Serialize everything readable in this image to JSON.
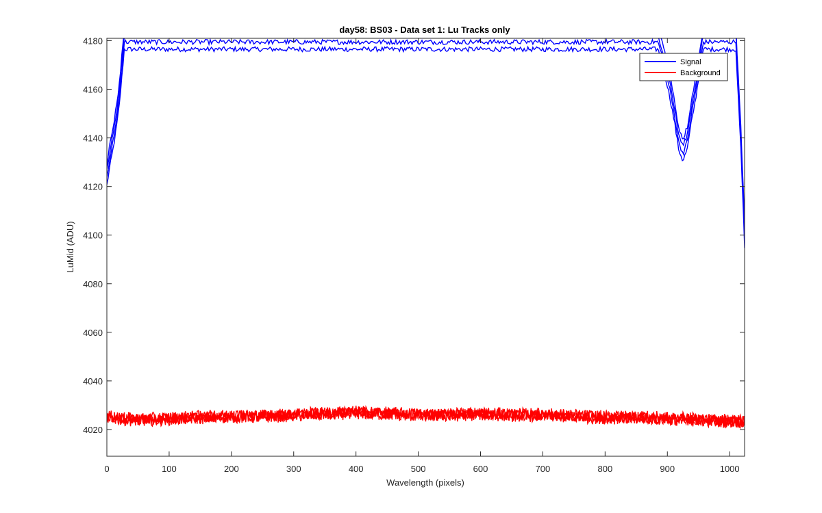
{
  "chart_data": {
    "type": "line",
    "title": "day58: BS03 - Data set 1: Lu Tracks only",
    "xlabel": "Wavelength (pixels)",
    "ylabel": "LuMid (ADU)",
    "xlim": [
      0,
      1024
    ],
    "ylim": [
      4009,
      4181
    ],
    "x_ticks": [
      0,
      100,
      200,
      300,
      400,
      500,
      600,
      700,
      800,
      900,
      1000
    ],
    "y_ticks": [
      4020,
      4040,
      4060,
      4080,
      4100,
      4120,
      4140,
      4160,
      4180
    ],
    "grid": false,
    "legend_position": "top-right",
    "series": [
      {
        "name": "Signal",
        "color": "#0000ff",
        "points": [
          [
            0,
            4125
          ],
          [
            5,
            4133
          ],
          [
            10,
            4140
          ],
          [
            15,
            4148
          ],
          [
            20,
            4158
          ],
          [
            25,
            4172
          ],
          [
            28,
            4181
          ],
          [
            885,
            4181
          ],
          [
            895,
            4172
          ],
          [
            905,
            4160
          ],
          [
            912,
            4150
          ],
          [
            918,
            4140
          ],
          [
            925,
            4135
          ],
          [
            932,
            4140
          ],
          [
            938,
            4150
          ],
          [
            945,
            4160
          ],
          [
            952,
            4172
          ],
          [
            958,
            4181
          ],
          [
            1010,
            4181
          ],
          [
            1014,
            4160
          ],
          [
            1018,
            4140
          ],
          [
            1021,
            4120
          ],
          [
            1024,
            4100
          ]
        ]
      },
      {
        "name": "Background",
        "color": "#ff0000",
        "points": [
          [
            0,
            4025
          ],
          [
            50,
            4024
          ],
          [
            100,
            4024.5
          ],
          [
            150,
            4025
          ],
          [
            200,
            4025.5
          ],
          [
            250,
            4025.5
          ],
          [
            300,
            4026
          ],
          [
            350,
            4026.5
          ],
          [
            400,
            4027
          ],
          [
            450,
            4026.5
          ],
          [
            500,
            4026
          ],
          [
            550,
            4026
          ],
          [
            600,
            4026.5
          ],
          [
            650,
            4026
          ],
          [
            700,
            4026
          ],
          [
            750,
            4025.5
          ],
          [
            800,
            4025
          ],
          [
            850,
            4025
          ],
          [
            900,
            4024.5
          ],
          [
            950,
            4024
          ],
          [
            1000,
            4023.5
          ],
          [
            1024,
            4023.5
          ]
        ]
      }
    ]
  }
}
